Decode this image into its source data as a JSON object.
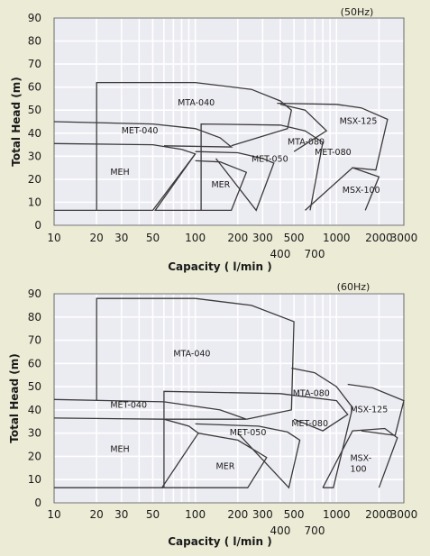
{
  "chart_data": [
    {
      "type": "line",
      "title": "",
      "frequency": "(50Hz)",
      "xlabel": "Capacity ( l/min )",
      "ylabel": "Total Head (m)",
      "xscale": "log",
      "xlim": [
        10,
        3000
      ],
      "ylim": [
        0,
        90
      ],
      "grid": true,
      "yticks": [
        "0",
        "10",
        "20",
        "30",
        "40",
        "50",
        "60",
        "70",
        "80",
        "90"
      ],
      "xticks": [
        {
          "label": "10",
          "x": 10,
          "row": 1
        },
        {
          "label": "20",
          "x": 20,
          "row": 1
        },
        {
          "label": "30",
          "x": 30,
          "row": 1
        },
        {
          "label": "50",
          "x": 50,
          "row": 1
        },
        {
          "label": "100",
          "x": 100,
          "row": 1
        },
        {
          "label": "200",
          "x": 200,
          "row": 1
        },
        {
          "label": "300",
          "x": 300,
          "row": 1
        },
        {
          "label": "400",
          "x": 400,
          "row": 2
        },
        {
          "label": "500",
          "x": 500,
          "row": 1
        },
        {
          "label": "700",
          "x": 700,
          "row": 2
        },
        {
          "label": "1000",
          "x": 1000,
          "row": 1
        },
        {
          "label": "2000",
          "x": 2000,
          "row": 1
        },
        {
          "label": "3000",
          "x": 3000,
          "row": 1
        }
      ],
      "series": [
        {
          "name": "MEH",
          "points": [
            [
              10,
              35.5
            ],
            [
              50,
              35
            ],
            [
              80,
              33
            ],
            [
              100,
              31
            ],
            [
              50,
              6.5
            ],
            [
              10,
              6.5
            ]
          ],
          "label_at": [
            25,
            22
          ]
        },
        {
          "name": "MET-040",
          "points": [
            [
              10,
              45
            ],
            [
              50,
              44
            ],
            [
              100,
              42
            ],
            [
              150,
              38
            ],
            [
              180,
              34
            ],
            [
              60,
              34.5
            ]
          ],
          "label_at": [
            30,
            40
          ]
        },
        {
          "name": "MER",
          "points": [
            [
              100,
              28
            ],
            [
              150,
              27.5
            ],
            [
              230,
              23
            ],
            [
              180,
              6.5
            ],
            [
              52,
              6.5
            ],
            [
              100,
              31
            ]
          ],
          "label_at": [
            130,
            16.5
          ]
        },
        {
          "name": "MET-050",
          "points": [
            [
              100,
              32
            ],
            [
              200,
              31.5
            ],
            [
              300,
              29
            ],
            [
              360,
              27
            ],
            [
              270,
              6.5
            ],
            [
              140,
              29
            ]
          ],
          "label_at": [
            250,
            27.5
          ]
        },
        {
          "name": "MTA-040",
          "points": [
            [
              20,
              6.5
            ],
            [
              20,
              62
            ],
            [
              100,
              62
            ],
            [
              250,
              59
            ],
            [
              400,
              54
            ],
            [
              480,
              50
            ],
            [
              450,
              42
            ],
            [
              180,
              34.5
            ]
          ],
          "label_at": [
            75,
            52
          ]
        },
        {
          "name": "MTA-080",
          "points": [
            [
              110,
              6.5
            ],
            [
              110,
              44
            ],
            [
              400,
              43.5
            ],
            [
              600,
              41
            ],
            [
              800,
              36
            ],
            [
              650,
              6.5
            ]
          ],
          "label_at": [
            450,
            35
          ]
        },
        {
          "name": "MET-080",
          "points": [
            [
              400,
              52.5
            ],
            [
              600,
              50
            ],
            [
              850,
              41
            ],
            [
              500,
              32
            ]
          ],
          "label_at": [
            700,
            30.5
          ]
        },
        {
          "name": "MSX-125",
          "points": [
            [
              380,
              53
            ],
            [
              1000,
              52.5
            ],
            [
              1500,
              51
            ],
            [
              2300,
              46
            ],
            [
              1900,
              24
            ],
            [
              1300,
              25
            ]
          ],
          "label_at": [
            1050,
            44
          ]
        },
        {
          "name": "MSX-100",
          "points": [
            [
              600,
              6.5
            ],
            [
              1300,
              25
            ],
            [
              2000,
              21
            ],
            [
              1600,
              6.5
            ]
          ],
          "label_at": [
            1100,
            14
          ]
        }
      ]
    },
    {
      "type": "line",
      "title": "",
      "frequency": "(60Hz)",
      "xlabel": "Capacity ( l/min )",
      "ylabel": "Total Head (m)",
      "xscale": "log",
      "xlim": [
        10,
        3000
      ],
      "ylim": [
        0,
        90
      ],
      "grid": true,
      "yticks": [
        "0",
        "10",
        "20",
        "30",
        "40",
        "50",
        "60",
        "70",
        "80",
        "90"
      ],
      "xticks": [
        {
          "label": "10",
          "x": 10,
          "row": 1
        },
        {
          "label": "20",
          "x": 20,
          "row": 1
        },
        {
          "label": "30",
          "x": 30,
          "row": 1
        },
        {
          "label": "50",
          "x": 50,
          "row": 1
        },
        {
          "label": "100",
          "x": 100,
          "row": 1
        },
        {
          "label": "200",
          "x": 200,
          "row": 1
        },
        {
          "label": "300",
          "x": 300,
          "row": 1
        },
        {
          "label": "400",
          "x": 400,
          "row": 2
        },
        {
          "label": "500",
          "x": 500,
          "row": 1
        },
        {
          "label": "700",
          "x": 700,
          "row": 2
        },
        {
          "label": "1000",
          "x": 1000,
          "row": 1
        },
        {
          "label": "2000",
          "x": 2000,
          "row": 1
        },
        {
          "label": "3000",
          "x": 3000,
          "row": 1
        }
      ],
      "series": [
        {
          "name": "MEH",
          "points": [
            [
              10,
              36.5
            ],
            [
              60,
              36
            ],
            [
              90,
              33
            ],
            [
              105,
              30
            ],
            [
              58,
              6.5
            ],
            [
              10,
              6.5
            ]
          ],
          "label_at": [
            25,
            22
          ]
        },
        {
          "name": "MET-040",
          "points": [
            [
              10,
              44.5
            ],
            [
              60,
              43.5
            ],
            [
              150,
              40
            ],
            [
              230,
              36
            ],
            [
              60,
              36
            ]
          ],
          "label_at": [
            25,
            41
          ]
        },
        {
          "name": "MER",
          "points": [
            [
              105,
              30
            ],
            [
              200,
              27
            ],
            [
              320,
              19.5
            ],
            [
              235,
              6.5
            ],
            [
              58,
              6.5
            ]
          ],
          "label_at": [
            140,
            14.5
          ]
        },
        {
          "name": "MET-050",
          "points": [
            [
              100,
              34
            ],
            [
              280,
              33
            ],
            [
              450,
              30.5
            ],
            [
              550,
              27
            ],
            [
              460,
              6.5
            ],
            [
              200,
              30
            ]
          ],
          "label_at": [
            175,
            29
          ]
        },
        {
          "name": "MTA-040",
          "points": [
            [
              20,
              44
            ],
            [
              20,
              88
            ],
            [
              100,
              88
            ],
            [
              250,
              85
            ],
            [
              500,
              78
            ],
            [
              480,
              40
            ],
            [
              230,
              36
            ]
          ],
          "label_at": [
            70,
            63
          ]
        },
        {
          "name": "MET-080",
          "points": [
            [
              60,
              6.5
            ],
            [
              60,
              48
            ],
            [
              400,
              47
            ],
            [
              1000,
              44
            ],
            [
              1200,
              38
            ],
            [
              800,
              31
            ],
            [
              500,
              36
            ]
          ],
          "label_at": [
            480,
            33
          ]
        },
        {
          "name": "MTA-080",
          "points": [
            [
              480,
              58
            ],
            [
              700,
              56
            ],
            [
              1000,
              50
            ],
            [
              1300,
              41
            ],
            [
              950,
              6.5
            ],
            [
              800,
              6.5
            ]
          ],
          "label_at": [
            490,
            46
          ]
        },
        {
          "name": "MSX-125",
          "points": [
            [
              1200,
              51
            ],
            [
              1800,
              49.5
            ],
            [
              3000,
              44
            ],
            [
              2600,
              29
            ],
            [
              1500,
              31
            ]
          ],
          "label_at": [
            1250,
            39
          ]
        },
        {
          "name": "MSX-100",
          "points": [
            [
              800,
              6.5
            ],
            [
              1300,
              31
            ],
            [
              2200,
              32
            ],
            [
              2700,
              28
            ],
            [
              2000,
              6.5
            ]
          ],
          "label_at": [
            1250,
            18
          ]
        }
      ],
      "series_label_lines": {
        "MSX-100": [
          "MSX-",
          "100"
        ]
      }
    }
  ]
}
